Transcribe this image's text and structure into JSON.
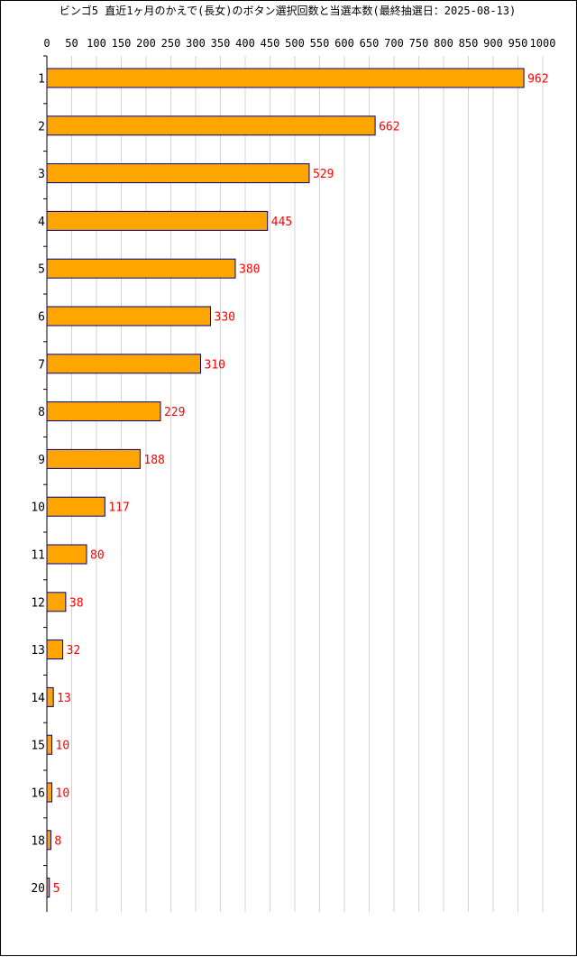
{
  "chart_data": {
    "type": "bar",
    "orientation": "horizontal",
    "title": "ビンゴ5 直近1ヶ月のかえで(長女)のボタン選択回数と当選本数(最終抽選日：2025-08-13)",
    "categories": [
      "1",
      "2",
      "3",
      "4",
      "5",
      "6",
      "7",
      "8",
      "9",
      "10",
      "11",
      "12",
      "13",
      "14",
      "15",
      "16",
      "18",
      "20"
    ],
    "values": [
      962,
      662,
      529,
      445,
      380,
      330,
      310,
      229,
      188,
      117,
      80,
      38,
      32,
      13,
      10,
      10,
      8,
      5
    ],
    "xticks": [
      0,
      50,
      100,
      150,
      200,
      250,
      300,
      350,
      400,
      450,
      500,
      550,
      600,
      650,
      700,
      750,
      800,
      850,
      900,
      950,
      1000
    ],
    "xlim": [
      0,
      1000
    ],
    "xlabel": "",
    "ylabel": "",
    "grid": "vertical",
    "colors": {
      "bar_fill": "#ffa500",
      "bar_stroke": "#000080",
      "data_label": "#ff0000",
      "grid": "#d3d3d3",
      "axis": "#000000"
    }
  }
}
